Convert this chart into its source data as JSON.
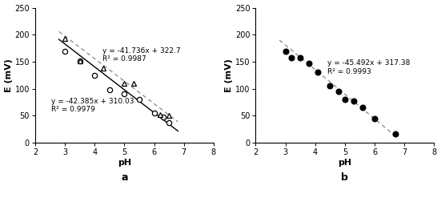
{
  "panel_a": {
    "circles_x": [
      3.0,
      3.5,
      4.0,
      4.5,
      5.0,
      5.5,
      6.0,
      6.3,
      6.5
    ],
    "circles_y": [
      170,
      152,
      125,
      98,
      90,
      80,
      55,
      48,
      38
    ],
    "triangles_x": [
      3.0,
      3.5,
      4.3,
      5.0,
      5.3,
      6.2,
      6.5
    ],
    "triangles_y": [
      193,
      152,
      138,
      110,
      110,
      52,
      50
    ],
    "line1_slope": -42.385,
    "line1_intercept": 310.03,
    "line1_label": "y = -42.385x + 310.03\nR² = 0.9979",
    "line2_slope": -41.736,
    "line2_intercept": 322.7,
    "line2_label": "y = -41.736x + 322.7\nR² = 0.9987",
    "line1_x": [
      2.8,
      6.8
    ],
    "line2_x": [
      2.8,
      6.8
    ],
    "xlabel": "pH",
    "ylabel": "E (mV)",
    "xlim": [
      2,
      8
    ],
    "ylim": [
      0,
      250
    ],
    "xticks": [
      2,
      3,
      4,
      5,
      6,
      7,
      8
    ],
    "yticks": [
      0,
      50,
      100,
      150,
      200,
      250
    ],
    "panel_label": "a",
    "ann1_x": 4.25,
    "ann1_y": 148,
    "ann2_x": 2.55,
    "ann2_y": 55
  },
  "panel_b": {
    "dots_x": [
      3.0,
      3.2,
      3.5,
      3.8,
      4.1,
      4.5,
      4.8,
      5.0,
      5.3,
      5.6,
      6.0,
      6.7
    ],
    "dots_y": [
      170,
      158,
      157,
      147,
      130,
      105,
      95,
      80,
      78,
      65,
      45,
      17
    ],
    "line_slope": -45.492,
    "line_intercept": 317.38,
    "line_label": "y = -45.492x + 317.38\nR² = 0.9993",
    "line_x": [
      2.8,
      6.8
    ],
    "xlabel": "pH",
    "ylabel": "E (mV)",
    "xlim": [
      2,
      8
    ],
    "ylim": [
      0,
      250
    ],
    "xticks": [
      2,
      3,
      4,
      5,
      6,
      7,
      8
    ],
    "yticks": [
      0,
      50,
      100,
      150,
      200,
      250
    ],
    "panel_label": "b",
    "ann_x": 4.4,
    "ann_y": 125
  },
  "bg_color": "#ffffff",
  "annotation_fontsize": 6.5,
  "label_fontsize": 8,
  "tick_fontsize": 7
}
